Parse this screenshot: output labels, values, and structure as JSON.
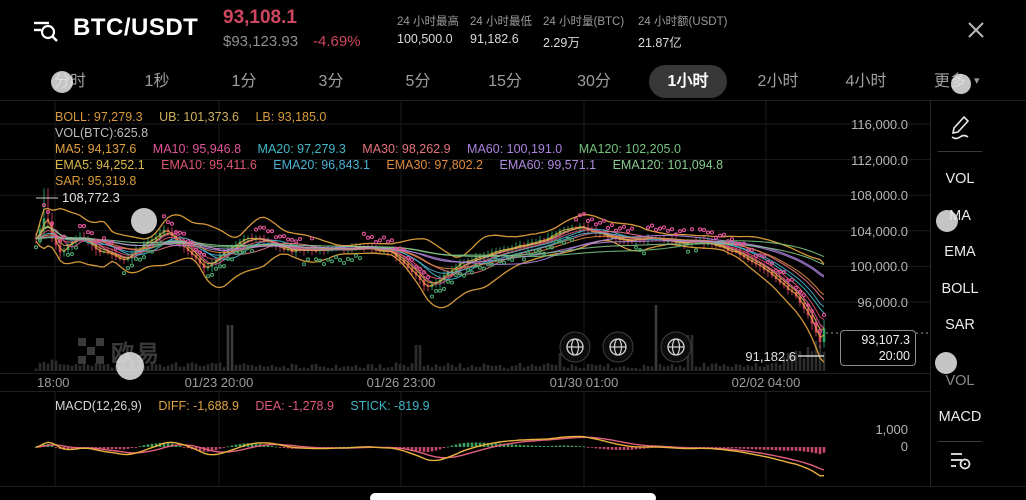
{
  "header": {
    "symbol": "BTC/USDT",
    "last_price": "93,108.1",
    "fiat_price": "$93,123.93",
    "change_pct": "-4.69%",
    "stats": [
      {
        "label": "24 小时最高",
        "value": "100,500.0"
      },
      {
        "label": "24 小时最低",
        "value": "91,182.6"
      },
      {
        "label": "24 小时量(BTC)",
        "value": "2.29万"
      },
      {
        "label": "24 小时额(USDT)",
        "value": "21.87亿"
      }
    ]
  },
  "tabs": {
    "items": [
      "分时",
      "1秒",
      "1分",
      "3分",
      "5分",
      "15分",
      "30分",
      "1小时",
      "2小时",
      "4小时"
    ],
    "selected": "1小时",
    "more_label": "更多",
    "caret": "▾"
  },
  "indicator_bar": {
    "row1": [
      "BOLL: 97,279.3",
      "UB: 101,373.6",
      "LB: 93,185.0"
    ],
    "row2": "VOL(BTC):625.8",
    "row3": [
      "MA5: 94,137.6",
      "MA10: 95,946.8",
      "MA20: 97,279.3",
      "MA30: 98,262.9",
      "MA60: 100,191.0",
      "MA120: 102,205.0"
    ],
    "row4": [
      "EMA5: 94,252.1",
      "EMA10: 95,411.6",
      "EMA20: 96,843.1",
      "EMA30: 97,802.2",
      "EMA60: 99,571.1",
      "EMA120: 101,094.8"
    ],
    "row5": "SAR: 95,319.8"
  },
  "macd_bar": [
    "MACD(12,26,9)",
    "DIFF: -1,688.9",
    "DEA: -1,278.9",
    "STICK: -819.9"
  ],
  "axis": {
    "y_labels": [
      "116,000.0",
      "112,000.0",
      "108,000.0",
      "104,000.0",
      "100,000.0",
      "96,000.0"
    ],
    "x_labels": [
      "18:00",
      "01/23 20:00",
      "01/26 23:00",
      "01/30 01:00",
      "02/02 04:00"
    ],
    "macd_y_labels": [
      "1,000",
      "0"
    ]
  },
  "overlays": {
    "visible_high": "108,772.3",
    "visible_low": "91,182.6",
    "last_price": "93,107.3",
    "last_time": "20:00"
  },
  "sidebar": {
    "main_indicators": [
      "VOL",
      "MA",
      "EMA",
      "BOLL",
      "SAR"
    ],
    "sub_indicators": [
      "VOL",
      "MACD"
    ]
  },
  "watermark": "欧易",
  "chart_data": {
    "type": "candlestick",
    "symbol": "BTC/USDT",
    "interval": "1小时",
    "y_axis": {
      "ticks": [
        116000,
        112000,
        108000,
        104000,
        100000,
        96000
      ],
      "unit": "USDT"
    },
    "x_axis": {
      "tick_labels": [
        "18:00",
        "01/23 20:00",
        "01/26 23:00",
        "01/30 01:00",
        "02/02 04:00"
      ]
    },
    "visible_high": 108772.3,
    "visible_low": 91182.6,
    "last": {
      "price": 93107.3,
      "time": "20:00"
    },
    "stats_24h": {
      "high": 100500.0,
      "low": 91182.6,
      "volume_btc": "2.29万",
      "turnover_usdt": "21.87亿"
    },
    "indicators": {
      "boll": {
        "mid": 97279.3,
        "ub": 101373.6,
        "lb": 93185.0
      },
      "vol_btc": 625.8,
      "ma": {
        "ma5": 94137.6,
        "ma10": 95946.8,
        "ma20": 97279.3,
        "ma30": 98262.9,
        "ma60": 100191.0,
        "ma120": 102205.0
      },
      "ema": {
        "ema5": 94252.1,
        "ema10": 95411.6,
        "ema20": 96843.1,
        "ema30": 97802.2,
        "ema60": 99571.1,
        "ema120": 101094.8
      },
      "sar": 95319.8,
      "macd": {
        "params": "12,26,9",
        "diff": -1688.9,
        "dea": -1278.9,
        "stick": -819.9
      }
    },
    "price_path": [
      [
        35,
        102900
      ],
      [
        46,
        105900
      ],
      [
        52,
        103500
      ],
      [
        60,
        101600
      ],
      [
        80,
        103300
      ],
      [
        100,
        101700
      ],
      [
        125,
        100700
      ],
      [
        150,
        103000
      ],
      [
        165,
        104100
      ],
      [
        185,
        102000
      ],
      [
        205,
        99800
      ],
      [
        225,
        101600
      ],
      [
        245,
        103300
      ],
      [
        265,
        102900
      ],
      [
        290,
        101700
      ],
      [
        315,
        101850
      ],
      [
        340,
        101950
      ],
      [
        365,
        102100
      ],
      [
        390,
        101600
      ],
      [
        410,
        99800
      ],
      [
        425,
        97600
      ],
      [
        440,
        98500
      ],
      [
        460,
        100400
      ],
      [
        485,
        101300
      ],
      [
        510,
        102100
      ],
      [
        535,
        102600
      ],
      [
        560,
        103900
      ],
      [
        580,
        104500
      ],
      [
        600,
        103600
      ],
      [
        625,
        102850
      ],
      [
        650,
        103200
      ],
      [
        675,
        102600
      ],
      [
        700,
        102850
      ],
      [
        720,
        102200
      ],
      [
        740,
        101400
      ],
      [
        760,
        100000
      ],
      [
        780,
        98200
      ],
      [
        795,
        96700
      ],
      [
        806,
        94900
      ],
      [
        815,
        92900
      ],
      [
        820,
        91600
      ],
      [
        823,
        93107.3
      ]
    ],
    "spike_high": {
      "x": 46,
      "price": 108772.3
    },
    "volume_spikes": [
      [
        230,
        46
      ],
      [
        418,
        26
      ],
      [
        560,
        18
      ],
      [
        655,
        66
      ],
      [
        690,
        36
      ],
      [
        800,
        20
      ],
      [
        808,
        24
      ],
      [
        816,
        30
      ],
      [
        820,
        26
      ]
    ],
    "colors": {
      "up": "#2fa56b",
      "down": "#d0455f",
      "boll": "#dfa03c",
      "ma": [
        "#e2a13d",
        "#e0559a",
        "#40b8c8",
        "#e4737d",
        "#ab82dd",
        "#72c17c"
      ],
      "ema": [
        "#d9b84e",
        "#dd5570",
        "#4cb0d4",
        "#e08b3e",
        "#b08ae0",
        "#86ca8e"
      ],
      "sar_above": "#e0559a",
      "sar_below": "#4da36d",
      "macd_diff": "#e8b23e",
      "macd_dea": "#e0607e",
      "hist_up": "#3f9e5e",
      "hist_dn": "#c5476a",
      "volume": "#2d2d2d"
    }
  }
}
